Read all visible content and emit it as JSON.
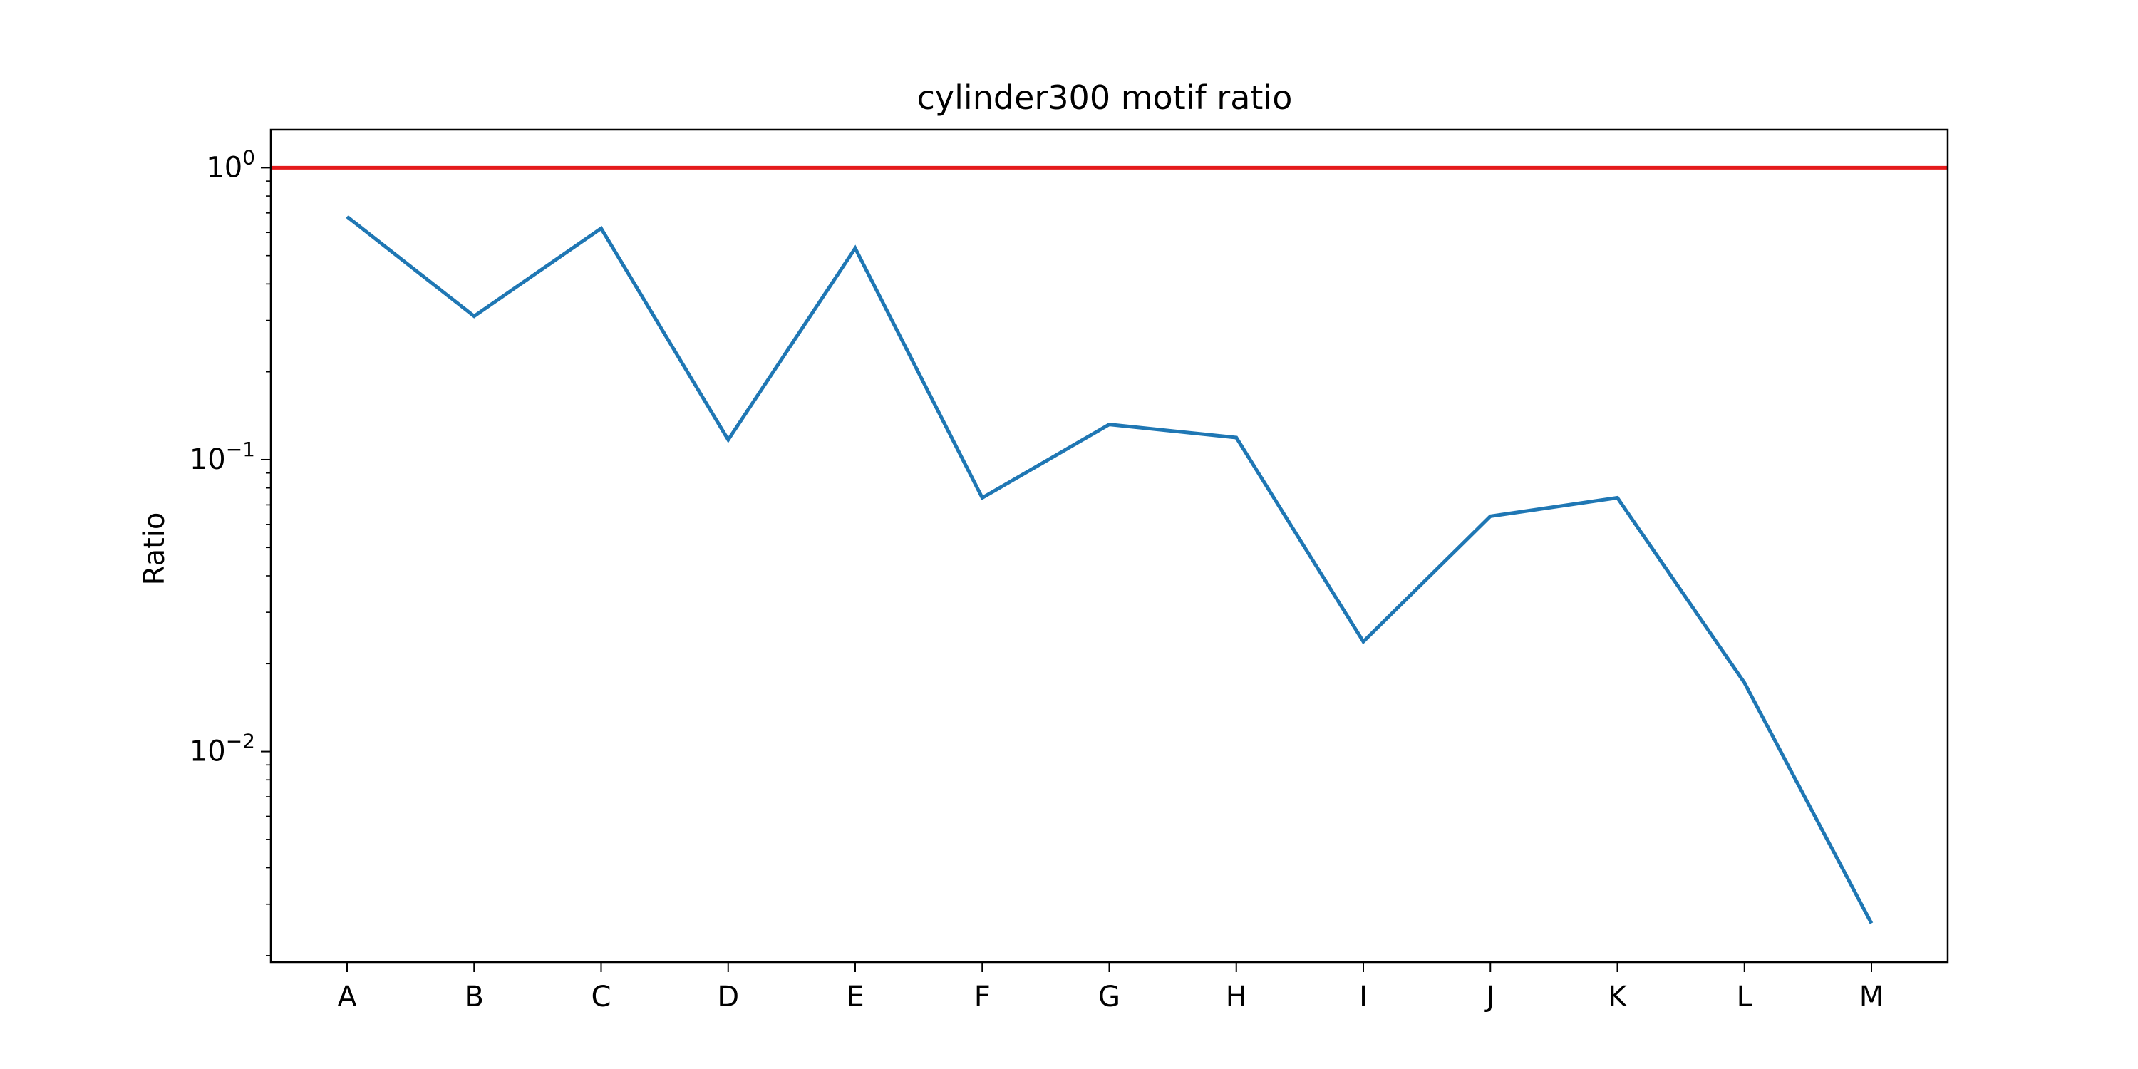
{
  "chart_data": {
    "type": "line",
    "title": "cylinder300 motif ratio",
    "xlabel": "",
    "ylabel": "Ratio",
    "yscale": "log",
    "ylim": [
      0.0019,
      1.35
    ],
    "grid": false,
    "categories": [
      "A",
      "B",
      "C",
      "D",
      "E",
      "F",
      "G",
      "H",
      "I",
      "J",
      "K",
      "L",
      "M"
    ],
    "series": [
      {
        "color": "#1f77b4",
        "values": [
          0.68,
          0.31,
          0.62,
          0.117,
          0.53,
          0.074,
          0.132,
          0.119,
          0.0238,
          0.064,
          0.074,
          0.0172,
          0.00258
        ]
      }
    ],
    "reference_line": {
      "y": 1.0,
      "color": "#e41a1c"
    },
    "yticks": [
      {
        "value": 1,
        "base": "10",
        "exp": "0"
      },
      {
        "value": 0.1,
        "base": "10",
        "exp": "−1"
      },
      {
        "value": 0.01,
        "base": "10",
        "exp": "−2"
      }
    ]
  }
}
